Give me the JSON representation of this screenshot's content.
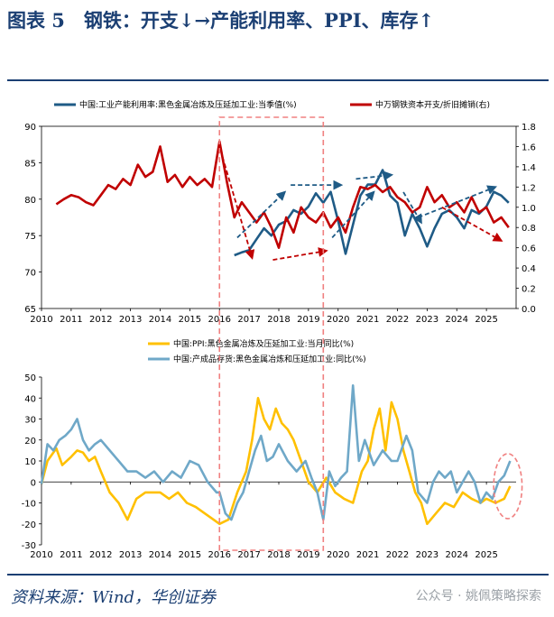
{
  "header": {
    "title": "图表 5　钢铁：开支↓→产能利用率、PPI、库存↑"
  },
  "footer": {
    "source": "资料来源：Wind，华创证券",
    "watermark": "公众号 · 姚佩策略探索"
  },
  "colors": {
    "navy": "#1f5b86",
    "red": "#c00000",
    "yellow": "#ffc000",
    "lightblue": "#6fa8c8",
    "box": "#f08080",
    "title": "#1b3f73"
  },
  "chart_data": [
    {
      "type": "line",
      "title": "",
      "xlim": [
        2010,
        2026
      ],
      "x_ticks": [
        2010,
        2011,
        2012,
        2013,
        2014,
        2015,
        2016,
        2017,
        2018,
        2019,
        2020,
        2021,
        2022,
        2023,
        2024,
        2025
      ],
      "left_ylim": [
        65,
        90
      ],
      "left_ticks": [
        65,
        70,
        75,
        80,
        85,
        90
      ],
      "right_ylim": [
        0,
        1.8
      ],
      "right_ticks": [
        0.0,
        0.2,
        0.4,
        0.6,
        0.8,
        1.0,
        1.2,
        1.4,
        1.6,
        1.8
      ],
      "series": [
        {
          "name": "中国:工业产能利用率:黑色金属冶炼及压延加工业:当季值(%)",
          "axis": "left",
          "color": "#1f5b86",
          "x": [
            2016.5,
            2016.75,
            2017.0,
            2017.25,
            2017.5,
            2017.75,
            2018.0,
            2018.25,
            2018.5,
            2018.75,
            2019.0,
            2019.25,
            2019.5,
            2019.75,
            2020.0,
            2020.25,
            2020.5,
            2020.75,
            2021.0,
            2021.25,
            2021.5,
            2021.75,
            2022.0,
            2022.25,
            2022.5,
            2022.75,
            2023.0,
            2023.25,
            2023.5,
            2023.75,
            2024.0,
            2024.25,
            2024.5,
            2024.75,
            2025.0,
            2025.25,
            2025.5,
            2025.75
          ],
          "values": [
            72.3,
            72.7,
            73.0,
            74.5,
            76.0,
            75.0,
            76.5,
            77.0,
            78.5,
            78.0,
            79.0,
            80.8,
            79.5,
            81.0,
            77.0,
            72.5,
            76.5,
            80.5,
            82.0,
            82.0,
            84.0,
            80.5,
            79.5,
            75.0,
            78.0,
            76.0,
            73.5,
            76.0,
            78.0,
            78.5,
            77.5,
            76.0,
            78.5,
            78.0,
            79.0,
            81.0,
            80.5,
            79.5
          ]
        },
        {
          "name": "中万钢铁资本开支/折旧摊销(右)",
          "axis": "right",
          "color": "#c00000",
          "x": [
            2010.5,
            2010.75,
            2011.0,
            2011.25,
            2011.5,
            2011.75,
            2012.0,
            2012.25,
            2012.5,
            2012.75,
            2013.0,
            2013.25,
            2013.5,
            2013.75,
            2014.0,
            2014.25,
            2014.5,
            2014.75,
            2015.0,
            2015.25,
            2015.5,
            2015.75,
            2016.0,
            2016.25,
            2016.5,
            2016.75,
            2017.0,
            2017.25,
            2017.5,
            2017.75,
            2018.0,
            2018.25,
            2018.5,
            2018.75,
            2019.0,
            2019.25,
            2019.5,
            2019.75,
            2020.0,
            2020.25,
            2020.5,
            2020.75,
            2021.0,
            2021.25,
            2021.5,
            2021.75,
            2022.0,
            2022.25,
            2022.5,
            2022.75,
            2023.0,
            2023.25,
            2023.5,
            2023.75,
            2024.0,
            2024.25,
            2024.5,
            2024.75,
            2025.0,
            2025.25,
            2025.5,
            2025.75
          ],
          "values": [
            1.03,
            1.08,
            1.12,
            1.1,
            1.05,
            1.02,
            1.12,
            1.22,
            1.18,
            1.28,
            1.22,
            1.42,
            1.3,
            1.35,
            1.6,
            1.25,
            1.32,
            1.2,
            1.3,
            1.22,
            1.28,
            1.2,
            1.65,
            1.25,
            0.9,
            1.05,
            0.95,
            0.85,
            0.95,
            0.8,
            0.6,
            0.9,
            0.75,
            1.0,
            0.9,
            0.85,
            0.95,
            0.8,
            0.9,
            0.75,
            1.0,
            1.2,
            1.18,
            1.22,
            1.15,
            1.2,
            1.1,
            1.05,
            0.95,
            1.0,
            1.2,
            1.05,
            1.12,
            1.0,
            1.05,
            0.95,
            1.1,
            0.95,
            1.0,
            0.85,
            0.9,
            0.8
          ]
        }
      ],
      "annotations": {
        "highlight_box_x": [
          2016.0,
          2019.5
        ],
        "arrows": [
          {
            "from": [
              2016.1,
              1.5
            ],
            "to": [
              2017.1,
              0.5
            ],
            "color": "#c00000"
          },
          {
            "from": [
              2016.6,
              0.7
            ],
            "to": [
              2018.2,
              1.15
            ],
            "color": "#1f5b86"
          },
          {
            "from": [
              2018.4,
              1.22
            ],
            "to": [
              2020.1,
              1.22
            ],
            "color": "#1f5b86"
          },
          {
            "from": [
              2017.8,
              0.48
            ],
            "to": [
              2019.6,
              0.57
            ],
            "color": "#c00000"
          },
          {
            "from": [
              2019.8,
              0.7
            ],
            "to": [
              2021.2,
              1.15
            ],
            "color": "#1f5b86"
          },
          {
            "from": [
              2020.6,
              1.28
            ],
            "to": [
              2021.8,
              1.32
            ],
            "color": "#1f5b86"
          },
          {
            "from": [
              2022.2,
              1.15
            ],
            "to": [
              2022.8,
              0.85
            ],
            "color": "#1f5b86"
          },
          {
            "from": [
              2022.7,
              0.9
            ],
            "to": [
              2025.3,
              1.2
            ],
            "color": "#1f5b86"
          },
          {
            "from": [
              2023.5,
              1.0
            ],
            "to": [
              2025.5,
              0.67
            ],
            "color": "#c00000"
          }
        ]
      }
    },
    {
      "type": "line",
      "title": "",
      "xlim": [
        2010,
        2026
      ],
      "x_ticks": [
        2010,
        2011,
        2012,
        2013,
        2014,
        2015,
        2016,
        2017,
        2018,
        2019,
        2020,
        2021,
        2022,
        2023,
        2024,
        2025
      ],
      "ylim": [
        -30,
        50
      ],
      "y_ticks": [
        -30,
        -20,
        -10,
        0,
        10,
        20,
        30,
        40,
        50
      ],
      "series": [
        {
          "name": "中国:PPI:黑色金属冶炼及压延加工业:当月同比(%)",
          "color": "#ffc000",
          "x": [
            2010.0,
            2010.2,
            2010.5,
            2010.7,
            2011.0,
            2011.2,
            2011.4,
            2011.6,
            2011.8,
            2012.0,
            2012.3,
            2012.6,
            2012.9,
            2013.2,
            2013.5,
            2013.8,
            2014.0,
            2014.3,
            2014.6,
            2014.9,
            2015.2,
            2015.5,
            2015.8,
            2016.0,
            2016.3,
            2016.6,
            2016.9,
            2017.1,
            2017.3,
            2017.5,
            2017.7,
            2017.9,
            2018.1,
            2018.3,
            2018.5,
            2018.8,
            2019.0,
            2019.3,
            2019.6,
            2019.9,
            2020.2,
            2020.5,
            2020.8,
            2021.0,
            2021.2,
            2021.4,
            2021.6,
            2021.8,
            2022.0,
            2022.2,
            2022.4,
            2022.6,
            2022.8,
            2023.0,
            2023.3,
            2023.6,
            2023.9,
            2024.2,
            2024.5,
            2024.8,
            2025.0,
            2025.3,
            2025.6,
            2025.8
          ],
          "values": [
            -1,
            10,
            16,
            8,
            12,
            15,
            14,
            10,
            12,
            5,
            -5,
            -10,
            -18,
            -8,
            -5,
            -5,
            -5,
            -8,
            -5,
            -10,
            -12,
            -15,
            -18,
            -20,
            -18,
            -5,
            5,
            20,
            40,
            30,
            25,
            35,
            28,
            25,
            20,
            8,
            0,
            -5,
            2,
            -5,
            -8,
            -10,
            5,
            10,
            25,
            35,
            15,
            38,
            30,
            15,
            5,
            -5,
            -10,
            -20,
            -15,
            -10,
            -12,
            -5,
            -8,
            -10,
            -8,
            -10,
            -8,
            -2
          ]
        },
        {
          "name": "中国:产成品存货:黑色金属冶炼和压延加工业:同比(%)",
          "color": "#6fa8c8",
          "x": [
            2010.0,
            2010.2,
            2010.4,
            2010.6,
            2010.8,
            2011.0,
            2011.2,
            2011.4,
            2011.6,
            2011.8,
            2012.0,
            2012.3,
            2012.6,
            2012.9,
            2013.2,
            2013.5,
            2013.8,
            2014.1,
            2014.4,
            2014.7,
            2015.0,
            2015.3,
            2015.6,
            2015.9,
            2016.0,
            2016.2,
            2016.4,
            2016.6,
            2016.8,
            2017.0,
            2017.2,
            2017.4,
            2017.6,
            2017.8,
            2018.0,
            2018.3,
            2018.6,
            2018.9,
            2019.1,
            2019.3,
            2019.5,
            2019.7,
            2019.9,
            2020.1,
            2020.3,
            2020.5,
            2020.7,
            2020.9,
            2021.2,
            2021.5,
            2021.8,
            2022.0,
            2022.3,
            2022.5,
            2022.7,
            2023.0,
            2023.2,
            2023.4,
            2023.6,
            2023.8,
            2024.0,
            2024.2,
            2024.4,
            2024.6,
            2024.8,
            2025.0,
            2025.2,
            2025.4,
            2025.6,
            2025.8
          ],
          "values": [
            -1,
            18,
            15,
            20,
            22,
            25,
            30,
            20,
            15,
            18,
            20,
            15,
            10,
            5,
            5,
            2,
            5,
            0,
            5,
            2,
            10,
            8,
            0,
            -5,
            -5,
            -15,
            -18,
            -10,
            -5,
            5,
            15,
            22,
            10,
            12,
            18,
            10,
            5,
            10,
            2,
            -5,
            -18,
            5,
            -2,
            2,
            5,
            46,
            10,
            20,
            8,
            15,
            10,
            10,
            22,
            15,
            -5,
            -10,
            0,
            5,
            2,
            5,
            -5,
            0,
            5,
            0,
            -10,
            -5,
            -8,
            0,
            3,
            10
          ]
        }
      ],
      "annotations": {
        "highlight_box_x": [
          2016.0,
          2019.5
        ],
        "highlight_ellipse_x": [
          2025.0,
          2026.2
        ]
      }
    }
  ]
}
